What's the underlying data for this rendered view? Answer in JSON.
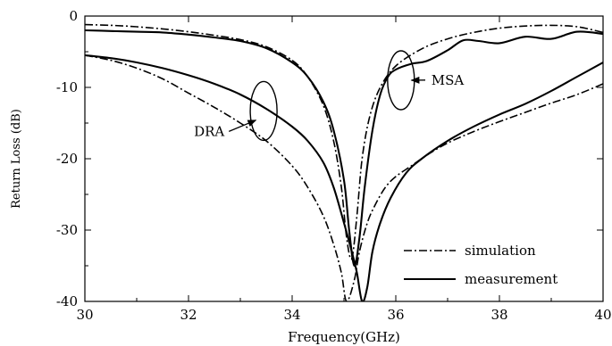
{
  "chart_data": {
    "type": "line",
    "title": "",
    "xlabel": "Frequency(GHz)",
    "ylabel": "Return Loss (dB)",
    "xlim": [
      30,
      40
    ],
    "ylim": [
      -40,
      0
    ],
    "xticks": [
      30,
      32,
      34,
      36,
      38,
      40
    ],
    "xtick_labels": [
      "30",
      "32",
      "34",
      "36",
      "38",
      "40"
    ],
    "yticks": [
      0,
      -10,
      -20,
      -30,
      -40
    ],
    "ytick_labels": [
      "0",
      "-10",
      "-20",
      "-30",
      "-40"
    ],
    "grid": false,
    "legend_position": "bottom-right",
    "legend": [
      {
        "label": "simulation",
        "style": "dashdot"
      },
      {
        "label": "measurement",
        "style": "solid"
      }
    ],
    "series": [
      {
        "style": "dashdot",
        "x": [
          30,
          30.5,
          31,
          31.5,
          32,
          32.5,
          33,
          33.5,
          34,
          34.3,
          34.6,
          34.8,
          34.95,
          35.05,
          35.15,
          35.25,
          35.35,
          35.5,
          35.7,
          36,
          36.5,
          37,
          37.5,
          38,
          38.5,
          39,
          39.5,
          40
        ],
        "y": [
          -1.2,
          -1.3,
          -1.5,
          -1.8,
          -2.2,
          -2.7,
          -3.3,
          -4.3,
          -6.2,
          -8.5,
          -12.5,
          -17.5,
          -24,
          -31,
          -34,
          -28,
          -20,
          -14,
          -10,
          -7,
          -4.6,
          -3.2,
          -2.3,
          -1.7,
          -1.4,
          -1.3,
          -1.5,
          -2.3
        ]
      },
      {
        "style": "solid",
        "x": [
          30,
          30.5,
          31,
          31.5,
          32,
          32.5,
          33,
          33.5,
          34,
          34.3,
          34.6,
          34.8,
          35,
          35.1,
          35.2,
          35.3,
          35.4,
          35.55,
          35.7,
          35.85,
          36,
          36.3,
          36.6,
          37,
          37.3,
          37.6,
          38,
          38.5,
          39,
          39.5,
          40
        ],
        "y": [
          -2.0,
          -2.1,
          -2.2,
          -2.3,
          -2.6,
          -3.0,
          -3.5,
          -4.5,
          -6.5,
          -8.5,
          -12,
          -16,
          -23,
          -30,
          -35,
          -31,
          -24,
          -16,
          -11,
          -8.5,
          -7.5,
          -6.7,
          -6.3,
          -4.8,
          -3.4,
          -3.5,
          -3.8,
          -2.9,
          -3.2,
          -2.2,
          -2.5
        ]
      },
      {
        "style": "dashdot",
        "x": [
          30,
          30.5,
          31,
          31.5,
          32,
          32.5,
          33,
          33.5,
          34,
          34.3,
          34.6,
          34.8,
          34.95,
          35.05,
          35.2,
          35.3,
          35.45,
          35.6,
          35.8,
          36,
          36.3,
          36.6,
          37,
          37.5,
          38,
          38.5,
          39,
          39.5,
          40
        ],
        "y": [
          -5.5,
          -6.2,
          -7.3,
          -8.8,
          -10.8,
          -12.8,
          -15,
          -17.5,
          -21,
          -24,
          -28,
          -32,
          -36,
          -40,
          -37,
          -33,
          -29,
          -26.5,
          -24,
          -22.5,
          -21,
          -19.5,
          -17.8,
          -16.2,
          -14.8,
          -13.5,
          -12.2,
          -11,
          -9.5
        ]
      },
      {
        "style": "solid",
        "x": [
          30,
          30.5,
          31,
          31.5,
          32,
          32.5,
          33,
          33.5,
          34,
          34.3,
          34.6,
          34.8,
          35,
          35.15,
          35.25,
          35.35,
          35.45,
          35.55,
          35.7,
          35.9,
          36.2,
          36.5,
          37,
          37.5,
          38,
          38.5,
          39,
          39.5,
          40
        ],
        "y": [
          -5.5,
          -5.9,
          -6.5,
          -7.3,
          -8.3,
          -9.5,
          -11,
          -13,
          -15.5,
          -17.5,
          -20.5,
          -24,
          -29,
          -33,
          -36,
          -40,
          -38,
          -33,
          -29,
          -25.5,
          -22,
          -20,
          -17.5,
          -15.5,
          -13.8,
          -12.3,
          -10.5,
          -8.5,
          -6.5
        ]
      }
    ],
    "annotations": [
      {
        "text": "DRA",
        "ellipse_center": [
          33.45,
          -13.3
        ],
        "text_anchor": [
          32.4,
          -16.8
        ],
        "arrow_tip": [
          33.3,
          -14.6
        ]
      },
      {
        "text": "MSA",
        "ellipse_center": [
          36.1,
          -9.0
        ],
        "text_anchor": [
          37.0,
          -9.6
        ],
        "arrow_tip": [
          36.3,
          -9.0
        ]
      }
    ]
  }
}
